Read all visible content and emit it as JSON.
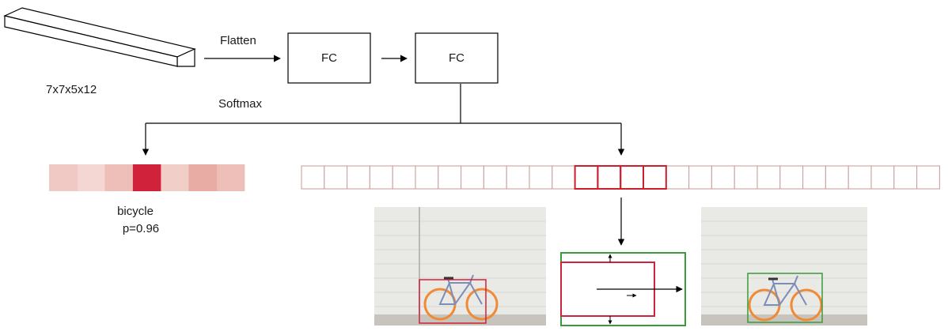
{
  "labels": {
    "tensor_shape": "7x7x5x12",
    "flatten": "Flatten",
    "softmax": "Softmax",
    "fc_1": "FC",
    "fc_2": "FC",
    "class_name": "bicycle",
    "class_prob": "p=0.96"
  },
  "class_scores": {
    "values": [
      0.22,
      0.12,
      0.3,
      0.96,
      0.18,
      0.45,
      0.3
    ],
    "high_color": "#d0223a",
    "base_color": "#e3968c"
  },
  "regression_vector": {
    "cell_count": 28,
    "highlight_cells": [
      12,
      13,
      14,
      15
    ],
    "cell_color": "#c9a2a2",
    "highlight_color": "#cc1f2b"
  },
  "colors": {
    "predicted_box": "#d0223a",
    "refined_box": "#3a9b3a",
    "wall": "#e9e9e6",
    "brick_line": "#d6d6d2",
    "ground": "#c7c4bd",
    "wheel": "#f08a36",
    "frame": "#7c8db8"
  }
}
